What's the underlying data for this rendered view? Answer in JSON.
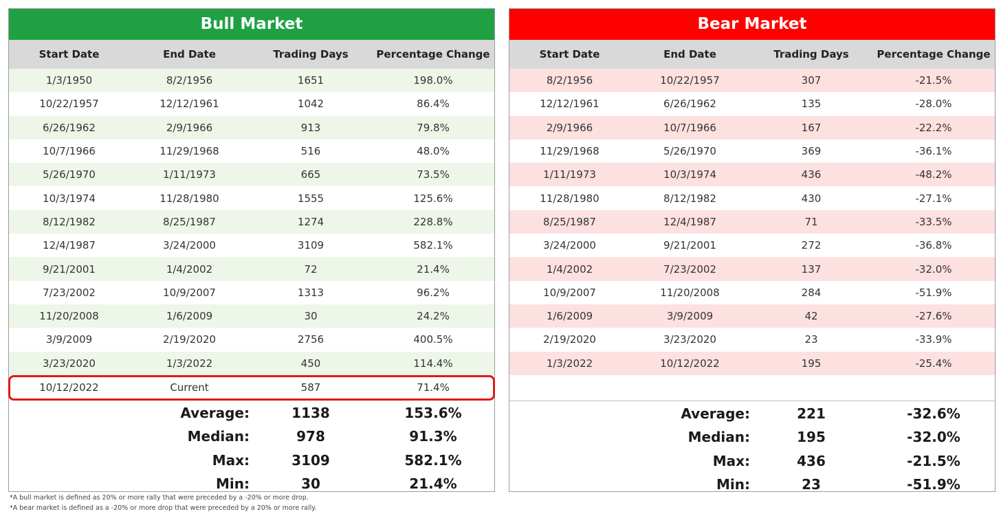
{
  "bull": {
    "title": "Bull Market",
    "headers": [
      "Start Date",
      "End Date",
      "Trading Days",
      "Percentage Change"
    ],
    "rows": [
      [
        "1/3/1950",
        "8/2/1956",
        "1651",
        "198.0%"
      ],
      [
        "10/22/1957",
        "12/12/1961",
        "1042",
        "86.4%"
      ],
      [
        "6/26/1962",
        "2/9/1966",
        "913",
        "79.8%"
      ],
      [
        "10/7/1966",
        "11/29/1968",
        "516",
        "48.0%"
      ],
      [
        "5/26/1970",
        "1/11/1973",
        "665",
        "73.5%"
      ],
      [
        "10/3/1974",
        "11/28/1980",
        "1555",
        "125.6%"
      ],
      [
        "8/12/1982",
        "8/25/1987",
        "1274",
        "228.8%"
      ],
      [
        "12/4/1987",
        "3/24/2000",
        "3109",
        "582.1%"
      ],
      [
        "9/21/2001",
        "1/4/2002",
        "72",
        "21.4%"
      ],
      [
        "7/23/2002",
        "10/9/2007",
        "1313",
        "96.2%"
      ],
      [
        "11/20/2008",
        "1/6/2009",
        "30",
        "24.2%"
      ],
      [
        "3/9/2009",
        "2/19/2020",
        "2756",
        "400.5%"
      ],
      [
        "3/23/2020",
        "1/3/2022",
        "450",
        "114.4%"
      ]
    ],
    "current": [
      "10/12/2022",
      "Current",
      "587",
      "71.4%"
    ],
    "stats": [
      {
        "label": "Average:",
        "days": "1138",
        "pct": "153.6%"
      },
      {
        "label": "Median:",
        "days": "978",
        "pct": "91.3%"
      },
      {
        "label": "Max:",
        "days": "3109",
        "pct": "582.1%"
      },
      {
        "label": "Min:",
        "days": "30",
        "pct": "21.4%"
      }
    ]
  },
  "bear": {
    "title": "Bear Market",
    "headers": [
      "Start Date",
      "End Date",
      "Trading Days",
      "Percentage Change"
    ],
    "rows": [
      [
        "8/2/1956",
        "10/22/1957",
        "307",
        "-21.5%"
      ],
      [
        "12/12/1961",
        "6/26/1962",
        "135",
        "-28.0%"
      ],
      [
        "2/9/1966",
        "10/7/1966",
        "167",
        "-22.2%"
      ],
      [
        "11/29/1968",
        "5/26/1970",
        "369",
        "-36.1%"
      ],
      [
        "1/11/1973",
        "10/3/1974",
        "436",
        "-48.2%"
      ],
      [
        "11/28/1980",
        "8/12/1982",
        "430",
        "-27.1%"
      ],
      [
        "8/25/1987",
        "12/4/1987",
        "71",
        "-33.5%"
      ],
      [
        "3/24/2000",
        "9/21/2001",
        "272",
        "-36.8%"
      ],
      [
        "1/4/2002",
        "7/23/2002",
        "137",
        "-32.0%"
      ],
      [
        "10/9/2007",
        "11/20/2008",
        "284",
        "-51.9%"
      ],
      [
        "1/6/2009",
        "3/9/2009",
        "42",
        "-27.6%"
      ],
      [
        "2/19/2020",
        "3/23/2020",
        "23",
        "-33.9%"
      ],
      [
        "1/3/2022",
        "10/12/2022",
        "195",
        "-25.4%"
      ]
    ],
    "stats": [
      {
        "label": "Average:",
        "days": "221",
        "pct": "-32.6%"
      },
      {
        "label": "Median:",
        "days": "195",
        "pct": "-32.0%"
      },
      {
        "label": "Max:",
        "days": "436",
        "pct": "-21.5%"
      },
      {
        "label": "Min:",
        "days": "23",
        "pct": "-51.9%"
      }
    ]
  },
  "footnotes": [
    "*A bull market is defined as 20% or more rally that were preceded by a -20% or more drop.",
    "*A bear market is defined as a -20% or more drop that were preceded by a 20% or more rally."
  ],
  "colors": {
    "bull_header": "#1fa043",
    "bear_header": "#ff0000",
    "highlight_border": "#e01818"
  }
}
